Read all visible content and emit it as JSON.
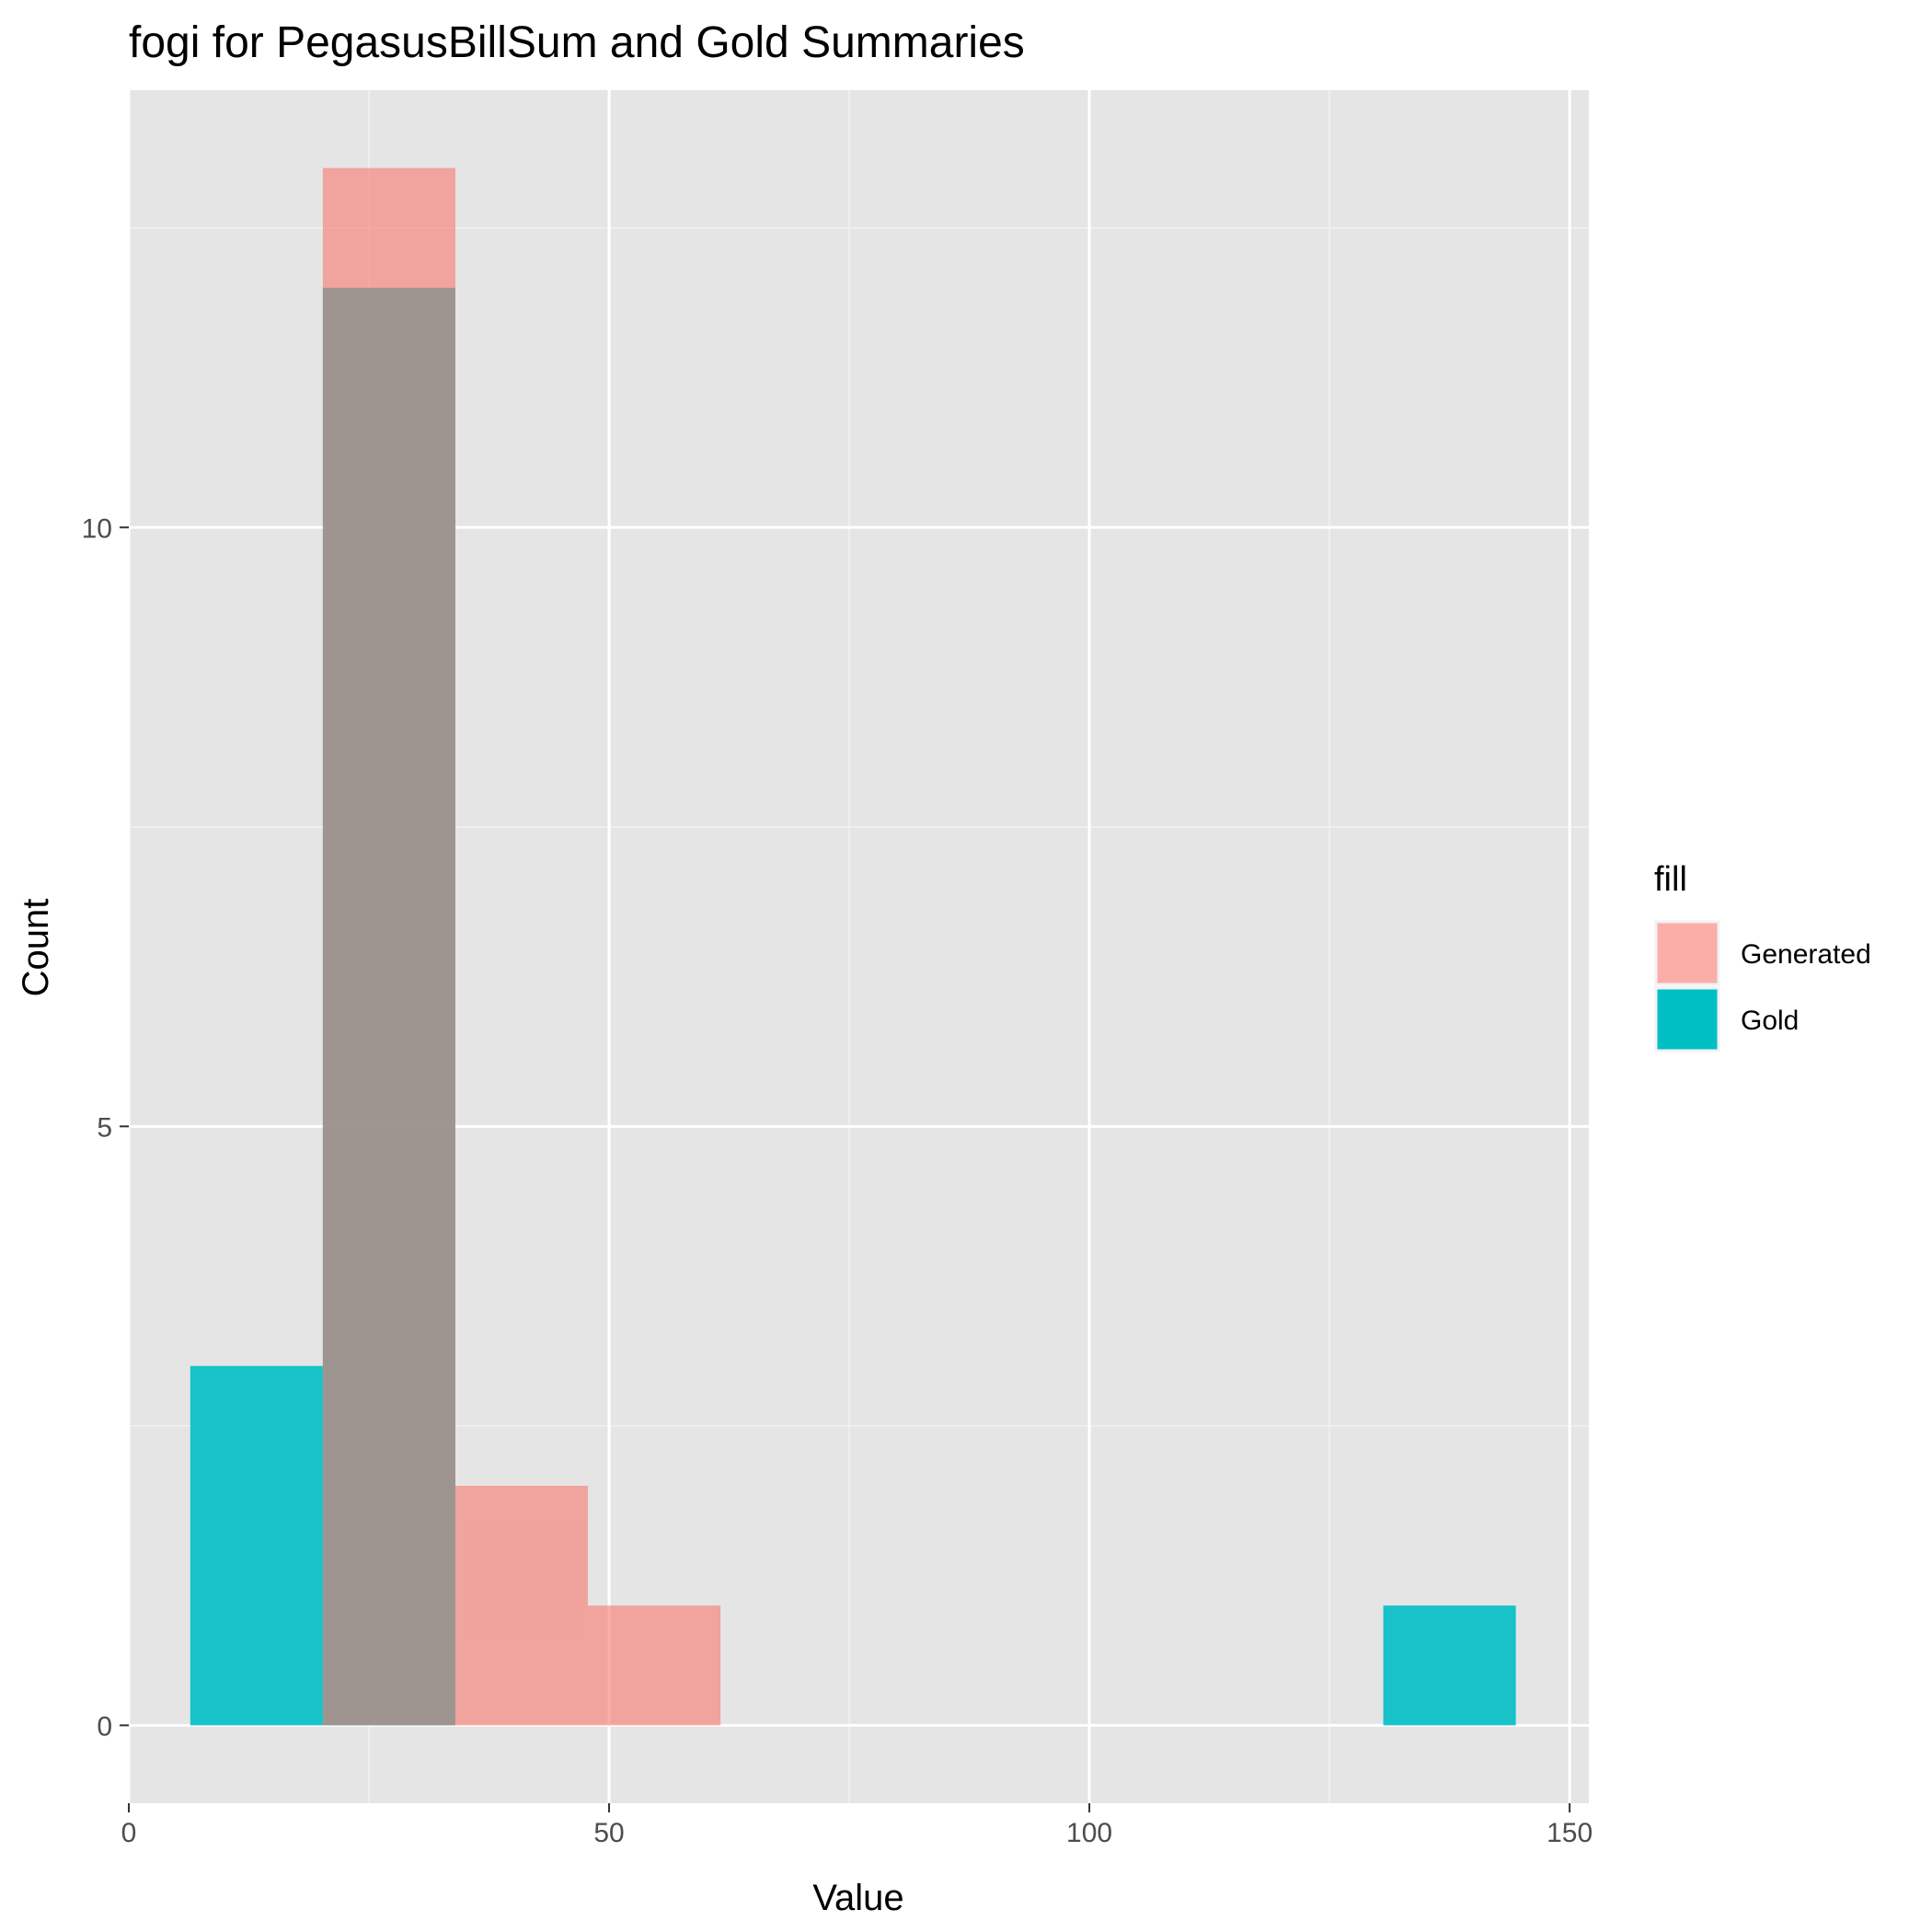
{
  "chart_data": {
    "type": "bar",
    "subtype": "histogram",
    "title": "fogi for PegasusBillSum and Gold Summaries",
    "xlabel": "Value",
    "ylabel": "Count",
    "xlim": [
      0,
      152
    ],
    "ylim": [
      -0.65,
      13.65
    ],
    "x_ticks": [
      0,
      50,
      100,
      150
    ],
    "x_tick_labels": [
      "0",
      "50",
      "100",
      "150"
    ],
    "x_minor_ticks": [
      25,
      75,
      125
    ],
    "y_ticks": [
      0,
      5,
      10
    ],
    "y_tick_labels": [
      "0",
      "5",
      "10"
    ],
    "y_minor_ticks": [
      2.5,
      7.5,
      12.5
    ],
    "grid": true,
    "legend": {
      "title": "fill",
      "position": "right"
    },
    "bin_width": 13.8,
    "series": [
      {
        "name": "Generated",
        "color": "#F8766D",
        "bins": [
          {
            "x0": 20.2,
            "x1": 34.0,
            "count": 13
          },
          {
            "x0": 34.0,
            "x1": 47.8,
            "count": 2
          },
          {
            "x0": 47.8,
            "x1": 61.6,
            "count": 1
          }
        ]
      },
      {
        "name": "Gold",
        "color": "#00BFC4",
        "bins": [
          {
            "x0": 6.4,
            "x1": 20.2,
            "count": 3
          },
          {
            "x0": 20.2,
            "x1": 34.0,
            "count": 12
          },
          {
            "x0": 130.6,
            "x1": 144.4,
            "count": 1
          }
        ]
      }
    ]
  }
}
